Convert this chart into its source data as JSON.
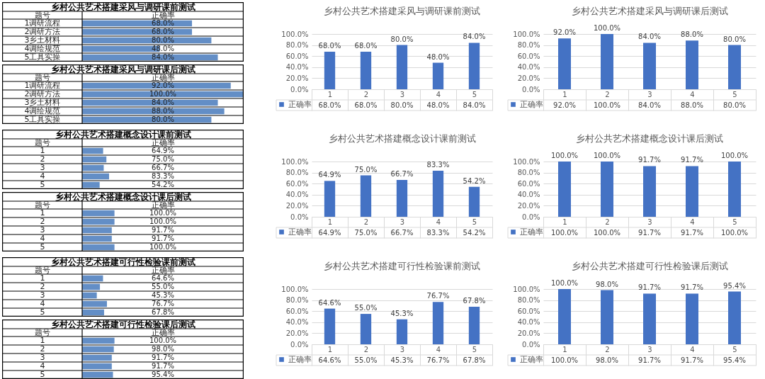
{
  "chart_data": [
    {
      "type": "bar",
      "orientation": "horizontal",
      "title": "乡村公共艺术搭建采风与调研课前测试",
      "ylabel": "题号",
      "xlabel": "正确率",
      "categories": [
        "1调研流程",
        "2调研方法",
        "3乡土材料",
        "4调绘规范",
        "5工具实操"
      ],
      "values": [
        68.0,
        68.0,
        80.0,
        48.0,
        84.0
      ],
      "value_labels": [
        "68.0%",
        "68.0%",
        "80.0%",
        "48.0%",
        "84.0%"
      ],
      "color": "#638ec6",
      "xlim": [
        0,
        100
      ],
      "tick_labels": "y",
      "grid": "y"
    },
    {
      "type": "bar",
      "orientation": "horizontal",
      "title": "乡村公共艺术搭建采风与调研课后测试",
      "ylabel": "题号",
      "xlabel": "正确率",
      "categories": [
        "1调研流程",
        "2调研方法",
        "3乡土材料",
        "4调绘规范",
        "5工具实操"
      ],
      "values": [
        92.0,
        100.0,
        84.0,
        88.0,
        80.0
      ],
      "value_labels": [
        "92.0%",
        "100.0%",
        "84.0%",
        "88.0%",
        "80.0%"
      ],
      "color": "#638ec6",
      "xlim": [
        0,
        100
      ],
      "tick_labels": "y",
      "grid": "y"
    },
    {
      "type": "bar",
      "title": "乡村公共艺术搭建采风与调研课前测试",
      "categories": [
        "1",
        "2",
        "3",
        "4",
        "5"
      ],
      "series": [
        {
          "name": "正确率",
          "color": "#4472c4",
          "values": [
            68.0,
            68.0,
            80.0,
            48.0,
            84.0
          ],
          "value_labels": [
            "68.0%",
            "68.0%",
            "80.0%",
            "48.0%",
            "84.0%"
          ]
        }
      ],
      "ylim": [
        0,
        100
      ],
      "yticks": [
        {
          "value": 0,
          "label": "0.0%"
        },
        {
          "value": 20,
          "label": "20.0%"
        },
        {
          "value": 40,
          "label": "40.0%"
        },
        {
          "value": 60,
          "label": "60.0%"
        },
        {
          "value": 80,
          "label": "80.0%"
        },
        {
          "value": 100,
          "label": "100.0%"
        }
      ],
      "grid": "y",
      "legend": "bottom left"
    },
    {
      "type": "bar",
      "title": "乡村公共艺术搭建采风与调研课后测试",
      "categories": [
        "1",
        "2",
        "3",
        "4",
        "5"
      ],
      "series": [
        {
          "name": "正确率",
          "color": "#4472c4",
          "values": [
            92.0,
            100.0,
            84.0,
            88.0,
            80.0
          ],
          "value_labels": [
            "92.0%",
            "100.0%",
            "84.0%",
            "88.0%",
            "80.0%"
          ]
        }
      ],
      "ylim": [
        0,
        100
      ],
      "yticks": [
        {
          "value": 0,
          "label": "0.0%"
        },
        {
          "value": 20,
          "label": "20.0%"
        },
        {
          "value": 40,
          "label": "40.0%"
        },
        {
          "value": 60,
          "label": "60.0%"
        },
        {
          "value": 80,
          "label": "80.0%"
        },
        {
          "value": 100,
          "label": "100.0%"
        }
      ],
      "grid": "y",
      "legend": "bottom left"
    },
    {
      "type": "bar",
      "orientation": "horizontal",
      "title": "乡村公共艺术搭建概念设计课前测试",
      "ylabel": "题号",
      "xlabel": "正确率",
      "categories": [
        "1",
        "2",
        "3",
        "4",
        "5"
      ],
      "values": [
        64.9,
        75.0,
        66.7,
        83.3,
        54.2
      ],
      "value_labels": [
        "64.9%",
        "75.0%",
        "66.7%",
        "83.3%",
        "54.2%"
      ],
      "color": "#638ec6",
      "xlim": [
        0,
        500
      ],
      "tick_labels": "y",
      "grid": "y"
    },
    {
      "type": "bar",
      "orientation": "horizontal",
      "title": "乡村公共艺术搭建概念设计课后测试",
      "ylabel": "题号",
      "xlabel": "正确率",
      "categories": [
        "1",
        "2",
        "3",
        "4",
        "5"
      ],
      "values": [
        100.0,
        100.0,
        91.7,
        91.7,
        100.0
      ],
      "value_labels": [
        "100.0%",
        "100.0%",
        "91.7%",
        "91.7%",
        "100.0%"
      ],
      "color": "#638ec6",
      "xlim": [
        0,
        500
      ],
      "tick_labels": "y",
      "grid": "y"
    },
    {
      "type": "bar",
      "title": "乡村公共艺术搭建概念设计课前测试",
      "categories": [
        "1",
        "2",
        "3",
        "4",
        "5"
      ],
      "series": [
        {
          "name": "正确率",
          "color": "#4472c4",
          "values": [
            64.9,
            75.0,
            66.7,
            83.3,
            54.2
          ],
          "value_labels": [
            "64.9%",
            "75.0%",
            "66.7%",
            "83.3%",
            "54.2%"
          ]
        }
      ],
      "ylim": [
        0,
        100
      ],
      "yticks": [
        {
          "value": 0,
          "label": "0.0%"
        },
        {
          "value": 20,
          "label": "20.0%"
        },
        {
          "value": 40,
          "label": "40.0%"
        },
        {
          "value": 60,
          "label": "60.0%"
        },
        {
          "value": 80,
          "label": "80.0%"
        },
        {
          "value": 100,
          "label": "100.0%"
        }
      ],
      "grid": "y",
      "legend": "bottom left"
    },
    {
      "type": "bar",
      "title": "乡村公共艺术搭建概念设计课后测试",
      "categories": [
        "1",
        "2",
        "3",
        "4",
        "5"
      ],
      "series": [
        {
          "name": "正确率",
          "color": "#4472c4",
          "values": [
            100.0,
            100.0,
            91.7,
            91.7,
            100.0
          ],
          "value_labels": [
            "100.0%",
            "100.0%",
            "91.7%",
            "91.7%",
            "100.0%"
          ]
        }
      ],
      "ylim": [
        0,
        100
      ],
      "yticks": [
        {
          "value": 0,
          "label": "0.0%"
        },
        {
          "value": 20,
          "label": "20.0%"
        },
        {
          "value": 40,
          "label": "40.0%"
        },
        {
          "value": 60,
          "label": "60.0%"
        },
        {
          "value": 80,
          "label": "80.0%"
        },
        {
          "value": 100,
          "label": "100.0%"
        }
      ],
      "grid": "y",
      "legend": "bottom left"
    },
    {
      "type": "bar",
      "orientation": "horizontal",
      "title": "乡村公共艺术搭建可行性检验课前测试",
      "ylabel": "题号",
      "xlabel": "正确率",
      "categories": [
        "1",
        "2",
        "3",
        "4",
        "5"
      ],
      "values": [
        64.6,
        55.0,
        45.3,
        76.7,
        67.8
      ],
      "value_labels": [
        "64.6%",
        "55.0%",
        "45.3%",
        "76.7%",
        "67.8%"
      ],
      "color": "#638ec6",
      "xlim": [
        0,
        500
      ],
      "tick_labels": "y",
      "grid": "y"
    },
    {
      "type": "bar",
      "orientation": "horizontal",
      "title": "乡村公共艺术搭建可行性检验课后测试",
      "ylabel": "题号",
      "xlabel": "正确率",
      "categories": [
        "1",
        "2",
        "3",
        "4",
        "5"
      ],
      "values": [
        100.0,
        98.0,
        91.7,
        91.7,
        95.4
      ],
      "value_labels": [
        "100.0%",
        "98.0%",
        "91.7%",
        "91.7%",
        "95.4%"
      ],
      "color": "#638ec6",
      "xlim": [
        0,
        500
      ],
      "tick_labels": "y",
      "grid": "y"
    },
    {
      "type": "bar",
      "title": "乡村公共艺术搭建可行性检验课前测试",
      "categories": [
        "1",
        "2",
        "3",
        "4",
        "5"
      ],
      "series": [
        {
          "name": "正确率",
          "color": "#4472c4",
          "values": [
            64.6,
            55.0,
            45.3,
            76.7,
            67.8
          ],
          "value_labels": [
            "64.6%",
            "55.0%",
            "45.3%",
            "76.7%",
            "67.8%"
          ]
        }
      ],
      "ylim": [
        0,
        100
      ],
      "yticks": [
        {
          "value": 0,
          "label": "0.0%"
        },
        {
          "value": 20,
          "label": "20.0%"
        },
        {
          "value": 40,
          "label": "40.0%"
        },
        {
          "value": 60,
          "label": "60.0%"
        },
        {
          "value": 80,
          "label": "80.0%"
        },
        {
          "value": 100,
          "label": "100.0%"
        }
      ],
      "grid": "y",
      "legend": "bottom left"
    },
    {
      "type": "bar",
      "title": "乡村公共艺术搭建可行性检验课后测试",
      "categories": [
        "1",
        "2",
        "3",
        "4",
        "5"
      ],
      "series": [
        {
          "name": "正确率",
          "color": "#4472c4",
          "values": [
            100.0,
            98.0,
            91.7,
            91.7,
            95.4
          ],
          "value_labels": [
            "100.0%",
            "98.0%",
            "91.7%",
            "91.7%",
            "95.4%"
          ]
        }
      ],
      "ylim": [
        0,
        100
      ],
      "yticks": [
        {
          "value": 0,
          "label": "0.0%"
        },
        {
          "value": 20,
          "label": "20.0%"
        },
        {
          "value": 40,
          "label": "40.0%"
        },
        {
          "value": 60,
          "label": "60.0%"
        },
        {
          "value": 80,
          "label": "80.0%"
        },
        {
          "value": 100,
          "label": "100.0%"
        }
      ],
      "grid": "y",
      "legend": "bottom left"
    }
  ]
}
